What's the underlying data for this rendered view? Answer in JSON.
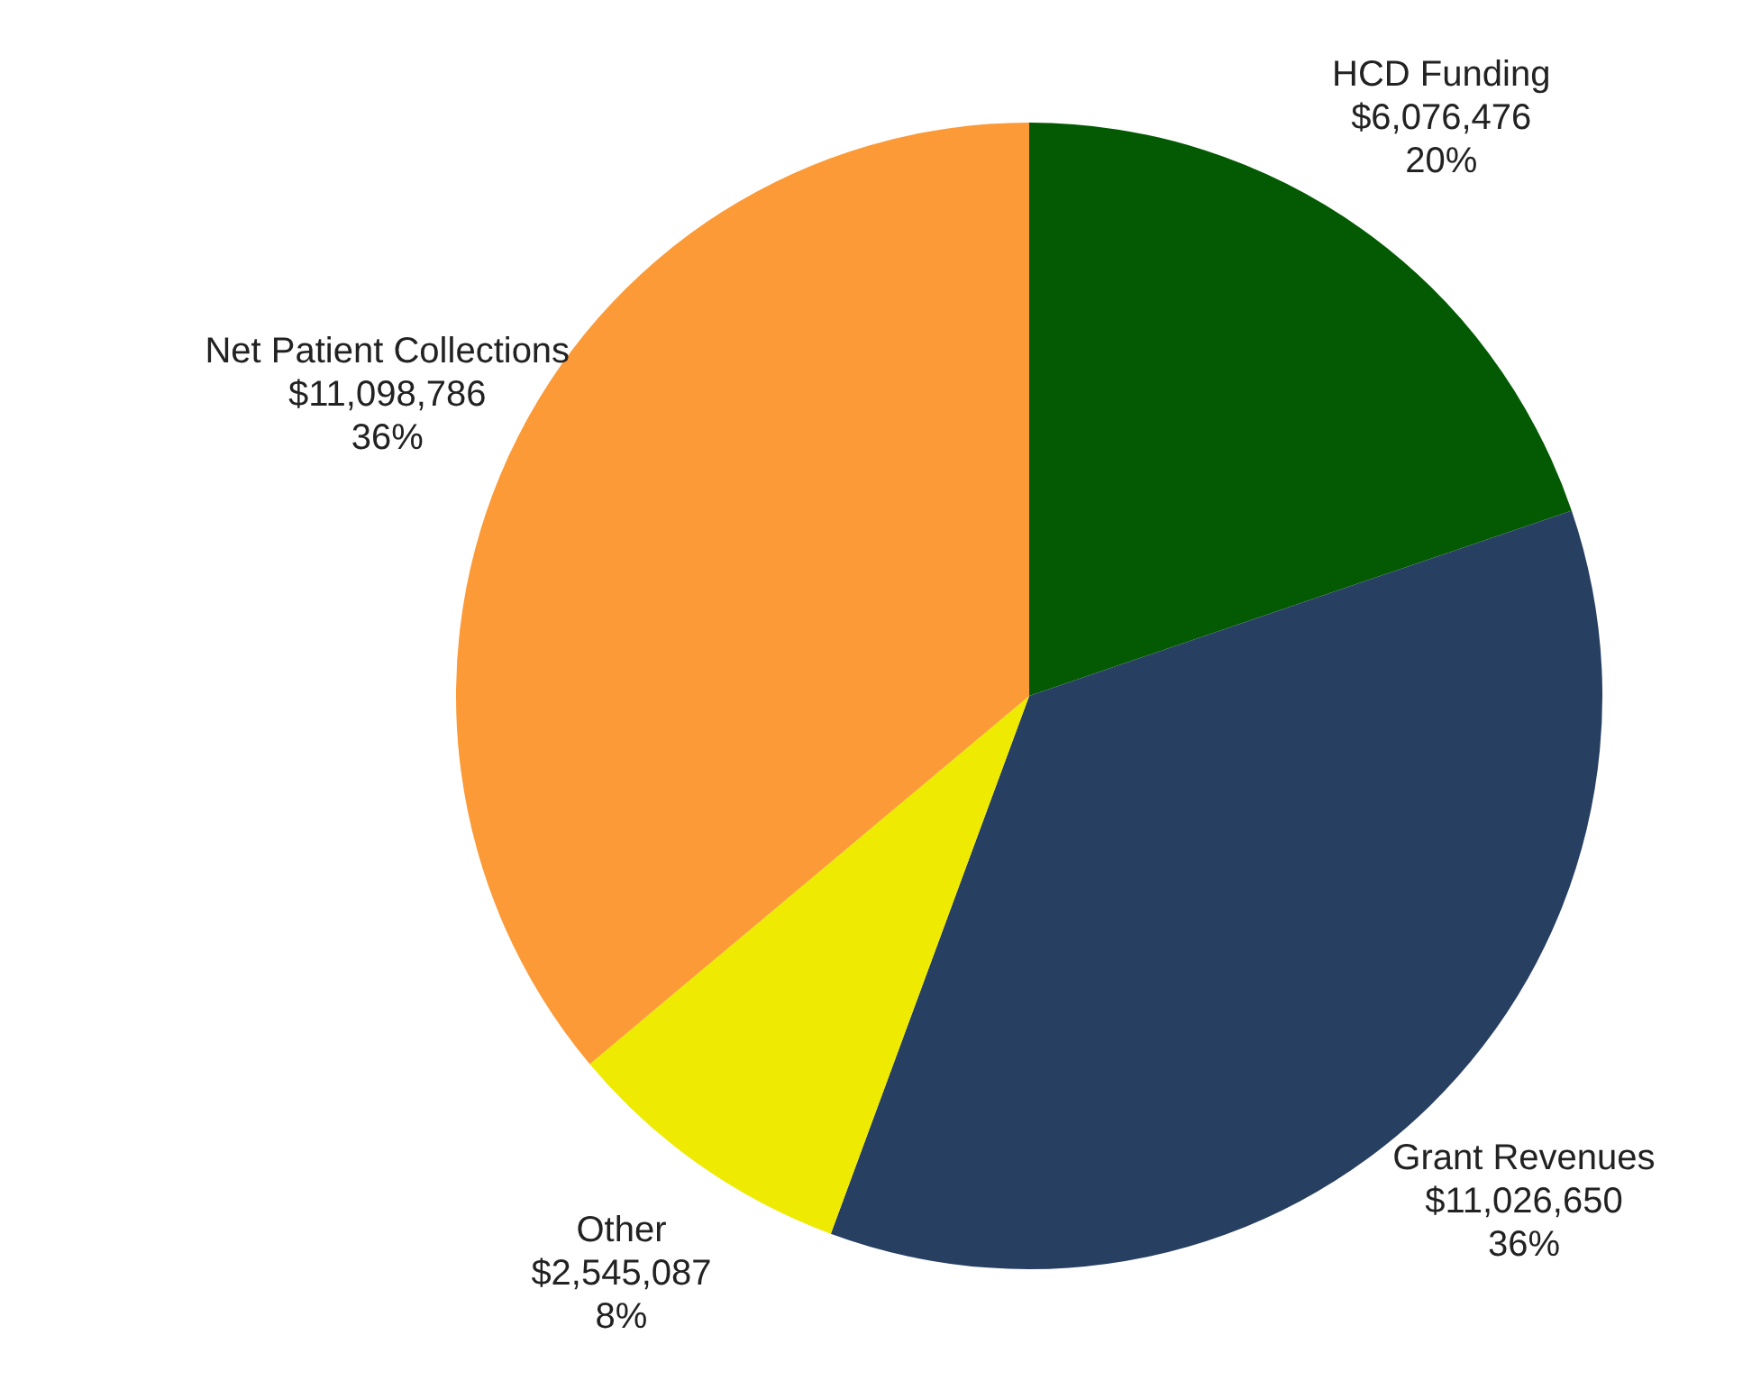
{
  "chart_data": {
    "type": "pie",
    "categories": [
      "HCD Funding",
      "Grant Revenues",
      "Other",
      "Net Patient Collections"
    ],
    "values": [
      6076476,
      11026650,
      2545087,
      11098786
    ],
    "colors": [
      "#035a02",
      "#273f61",
      "#eeea02",
      "#fb9a36"
    ],
    "value_labels": [
      "$6,076,476\n20%",
      "$11,026,650\n36%",
      "$2,545,087\n8%",
      "$11,098,786\n36%"
    ]
  }
}
